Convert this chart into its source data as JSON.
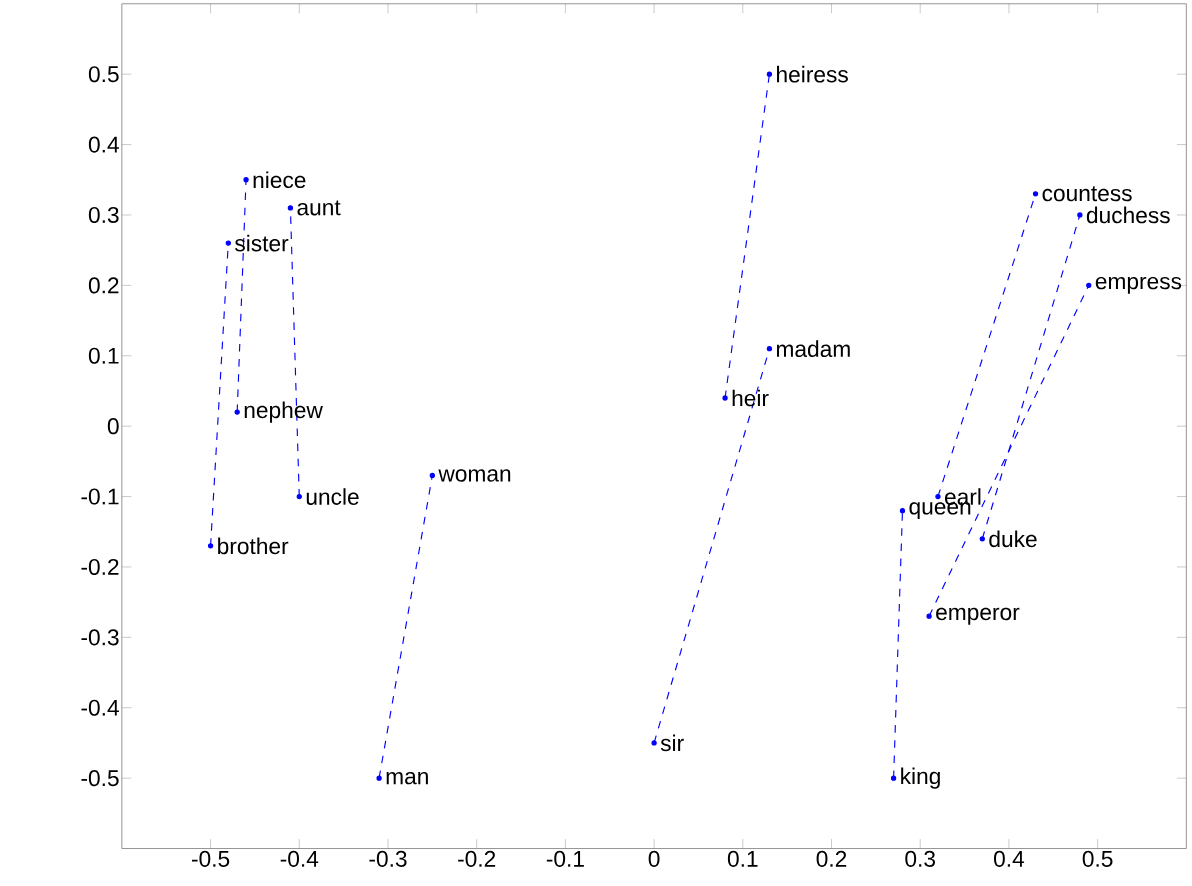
{
  "chart_data": {
    "type": "line",
    "marker": "circle",
    "line_style": "dashed",
    "series": [
      {
        "color": "#0000ff",
        "x": [
          -0.5,
          -0.48
        ],
        "values": [
          -0.17,
          0.26
        ]
      },
      {
        "color": "#0000ff",
        "x": [
          -0.47,
          -0.46
        ],
        "values": [
          0.02,
          0.35
        ]
      },
      {
        "color": "#0000ff",
        "x": [
          -0.4,
          -0.41
        ],
        "values": [
          -0.1,
          0.31
        ]
      },
      {
        "color": "#0000ff",
        "x": [
          -0.31,
          -0.25
        ],
        "values": [
          -0.5,
          -0.07
        ]
      },
      {
        "color": "#0000ff",
        "x": [
          0.0,
          0.13
        ],
        "values": [
          -0.45,
          0.11
        ]
      },
      {
        "color": "#0000ff",
        "x": [
          0.08,
          0.13
        ],
        "values": [
          0.04,
          0.5
        ]
      },
      {
        "color": "#0000ff",
        "x": [
          0.27,
          0.28
        ],
        "values": [
          -0.5,
          -0.12
        ]
      },
      {
        "color": "#0000ff",
        "x": [
          0.32,
          0.43
        ],
        "values": [
          -0.1,
          0.33
        ]
      },
      {
        "color": "#0000ff",
        "x": [
          0.37,
          0.48
        ],
        "values": [
          -0.16,
          0.3
        ]
      },
      {
        "color": "#0000ff",
        "x": [
          0.31,
          0.49
        ],
        "values": [
          -0.27,
          0.2
        ]
      }
    ],
    "annotations": [
      {
        "text": "brother",
        "x": -0.5,
        "y": -0.17
      },
      {
        "text": "sister",
        "x": -0.48,
        "y": 0.26
      },
      {
        "text": "nephew",
        "x": -0.47,
        "y": 0.02
      },
      {
        "text": "niece",
        "x": -0.46,
        "y": 0.35
      },
      {
        "text": "uncle",
        "x": -0.4,
        "y": -0.1
      },
      {
        "text": "aunt",
        "x": -0.41,
        "y": 0.31
      },
      {
        "text": "man",
        "x": -0.31,
        "y": -0.5
      },
      {
        "text": "woman",
        "x": -0.25,
        "y": -0.07
      },
      {
        "text": "sir",
        "x": 0.0,
        "y": -0.45
      },
      {
        "text": "madam",
        "x": 0.13,
        "y": 0.11
      },
      {
        "text": "heir",
        "x": 0.08,
        "y": 0.04
      },
      {
        "text": "heiress",
        "x": 0.13,
        "y": 0.5
      },
      {
        "text": "king",
        "x": 0.27,
        "y": -0.5
      },
      {
        "text": "queen",
        "x": 0.28,
        "y": -0.12
      },
      {
        "text": "earl",
        "x": 0.32,
        "y": -0.1
      },
      {
        "text": "countess",
        "x": 0.43,
        "y": 0.33
      },
      {
        "text": "duke",
        "x": 0.37,
        "y": -0.16
      },
      {
        "text": "duchess",
        "x": 0.48,
        "y": 0.3
      },
      {
        "text": "emperor",
        "x": 0.31,
        "y": -0.27
      },
      {
        "text": "empress",
        "x": 0.49,
        "y": 0.2
      }
    ],
    "xlim": [
      -0.6,
      0.6
    ],
    "ylim": [
      -0.6,
      0.6
    ],
    "xticks": [
      -0.5,
      -0.4,
      -0.3,
      -0.2,
      -0.1,
      0,
      0.1,
      0.2,
      0.3,
      0.4,
      0.5
    ],
    "yticks": [
      -0.5,
      -0.4,
      -0.3,
      -0.2,
      -0.1,
      0,
      0.1,
      0.2,
      0.3,
      0.4,
      0.5
    ]
  }
}
